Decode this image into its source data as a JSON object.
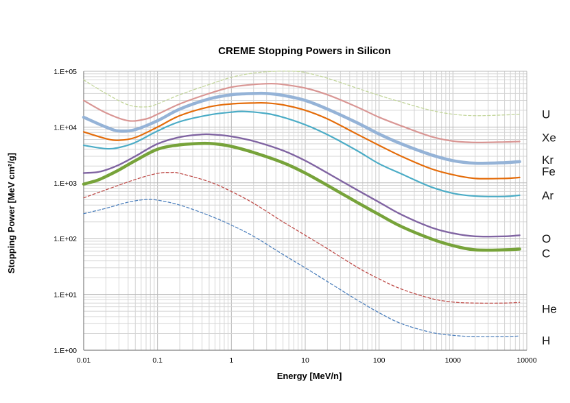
{
  "chart_data": {
    "type": "line",
    "title": "CREME Stopping Powers in Silicon",
    "xlabel": "Energy [MeV/n]",
    "ylabel": "Stopping Power [MeV cm²/g]",
    "x_scale": "log",
    "y_scale": "log",
    "xlim": [
      0.01,
      10000
    ],
    "ylim": [
      1,
      100000
    ],
    "grid": true,
    "legend": "labels at right end of each series",
    "x_ticks": [
      {
        "value": 0.01,
        "label": "0.01"
      },
      {
        "value": 0.1,
        "label": "0.1"
      },
      {
        "value": 1,
        "label": "1"
      },
      {
        "value": 10,
        "label": "10"
      },
      {
        "value": 100,
        "label": "100"
      },
      {
        "value": 1000,
        "label": "1000"
      },
      {
        "value": 10000,
        "label": "10000"
      }
    ],
    "y_ticks": [
      {
        "value": 1,
        "label": "1.E+00"
      },
      {
        "value": 10,
        "label": "1.E+01"
      },
      {
        "value": 100,
        "label": "1.E+02"
      },
      {
        "value": 1000,
        "label": "1.E+03"
      },
      {
        "value": 10000,
        "label": "1.E+04"
      },
      {
        "value": 100000,
        "label": "1.E+05"
      }
    ],
    "series": [
      {
        "name": "U",
        "color": "#c3d69b",
        "style": "dashed",
        "width": 1.3,
        "x": [
          0.01,
          0.02,
          0.04,
          0.07,
          0.1,
          0.2,
          0.5,
          1,
          2,
          4,
          7,
          10,
          20,
          50,
          100,
          200,
          500,
          1000,
          2000,
          5000,
          8000
        ],
        "y": [
          70000,
          40000,
          25000,
          23000,
          26000,
          38000,
          58000,
          78000,
          93000,
          100000,
          100000,
          95000,
          75000,
          50000,
          37000,
          28000,
          20000,
          17000,
          16000,
          16500,
          17000
        ]
      },
      {
        "name": "Xe",
        "color": "#d99694",
        "style": "solid",
        "width": 2.2,
        "x": [
          0.01,
          0.02,
          0.04,
          0.07,
          0.1,
          0.2,
          0.5,
          1,
          2,
          3.5,
          5,
          10,
          20,
          50,
          100,
          200,
          500,
          1000,
          2000,
          5000,
          8000
        ],
        "y": [
          30000,
          18000,
          13000,
          14000,
          17000,
          26000,
          40000,
          52000,
          58000,
          60000,
          58000,
          50000,
          38000,
          23000,
          15000,
          10500,
          6800,
          5600,
          5300,
          5400,
          5500
        ]
      },
      {
        "name": "Kr",
        "color": "#95b3d7",
        "style": "solid",
        "width": 4.5,
        "x": [
          0.01,
          0.02,
          0.03,
          0.05,
          0.1,
          0.2,
          0.5,
          1,
          2,
          3,
          5,
          10,
          20,
          50,
          100,
          200,
          500,
          1000,
          2000,
          5000,
          8000
        ],
        "y": [
          15000,
          10000,
          8500,
          9000,
          13000,
          21000,
          32000,
          38000,
          40000,
          40000,
          37000,
          30000,
          21000,
          12000,
          7500,
          5000,
          3200,
          2500,
          2250,
          2300,
          2400
        ]
      },
      {
        "name": "Fe",
        "color": "#e46c0a",
        "style": "solid",
        "width": 2.2,
        "x": [
          0.01,
          0.02,
          0.03,
          0.05,
          0.1,
          0.2,
          0.5,
          1,
          2,
          3,
          5,
          10,
          20,
          50,
          100,
          200,
          500,
          1000,
          2000,
          5000,
          8000
        ],
        "y": [
          8200,
          6200,
          5800,
          6500,
          10000,
          16000,
          23000,
          26000,
          27000,
          27000,
          25000,
          20000,
          14000,
          7500,
          4700,
          3000,
          1800,
          1400,
          1200,
          1200,
          1250
        ]
      },
      {
        "name": "Ar",
        "color": "#4bacc6",
        "style": "solid",
        "width": 2.2,
        "x": [
          0.01,
          0.02,
          0.03,
          0.05,
          0.1,
          0.2,
          0.5,
          1,
          1.5,
          3,
          5,
          10,
          20,
          50,
          100,
          200,
          500,
          1000,
          2000,
          5000,
          8000
        ],
        "y": [
          4700,
          4100,
          4300,
          5300,
          8500,
          12500,
          16500,
          18500,
          19000,
          17500,
          15000,
          11000,
          7300,
          3800,
          2200,
          1450,
          850,
          650,
          580,
          570,
          600
        ]
      },
      {
        "name": "O",
        "color": "#8064a2",
        "style": "solid",
        "width": 2.4,
        "x": [
          0.01,
          0.015,
          0.02,
          0.03,
          0.05,
          0.1,
          0.2,
          0.4,
          0.6,
          1,
          2,
          5,
          10,
          20,
          50,
          100,
          200,
          500,
          1000,
          2000,
          5000,
          8000
        ],
        "y": [
          1500,
          1550,
          1700,
          2100,
          3000,
          5000,
          6600,
          7400,
          7300,
          6800,
          5600,
          3800,
          2500,
          1500,
          750,
          450,
          270,
          160,
          125,
          110,
          110,
          115
        ]
      },
      {
        "name": "C",
        "color": "#77a33a",
        "style": "solid",
        "width": 4.5,
        "x": [
          0.01,
          0.015,
          0.02,
          0.03,
          0.05,
          0.1,
          0.2,
          0.4,
          0.6,
          1,
          2,
          5,
          10,
          20,
          50,
          100,
          200,
          500,
          1000,
          2000,
          5000,
          8000
        ],
        "y": [
          950,
          1100,
          1300,
          1700,
          2500,
          4000,
          4800,
          5100,
          5000,
          4500,
          3500,
          2300,
          1500,
          900,
          450,
          270,
          165,
          100,
          75,
          63,
          63,
          65
        ]
      },
      {
        "name": "He",
        "color": "#c0504d",
        "style": "dashed",
        "width": 1.3,
        "x": [
          0.01,
          0.02,
          0.05,
          0.1,
          0.15,
          0.2,
          0.5,
          1,
          2,
          5,
          10,
          20,
          50,
          100,
          200,
          500,
          1000,
          2000,
          5000,
          8000
        ],
        "y": [
          540,
          750,
          1150,
          1480,
          1530,
          1480,
          1050,
          700,
          430,
          200,
          115,
          66,
          31,
          19,
          12.5,
          8.5,
          7.3,
          7,
          7,
          7.2
        ]
      },
      {
        "name": "H",
        "color": "#4f81bd",
        "style": "dashed",
        "width": 1.3,
        "x": [
          0.01,
          0.02,
          0.04,
          0.07,
          0.1,
          0.2,
          0.5,
          1,
          2,
          5,
          10,
          20,
          50,
          100,
          200,
          500,
          1000,
          2000,
          5000,
          8000
        ],
        "y": [
          280,
          350,
          450,
          505,
          490,
          400,
          260,
          175,
          110,
          52,
          30,
          17,
          8,
          4.7,
          3,
          2.1,
          1.85,
          1.75,
          1.75,
          1.8
        ]
      }
    ],
    "end_labels": [
      {
        "text": "U",
        "y": 17000
      },
      {
        "text": "Xe",
        "y": 6500
      },
      {
        "text": "Kr",
        "y": 2600
      },
      {
        "text": "Fe",
        "y": 1600
      },
      {
        "text": "Ar",
        "y": 600
      },
      {
        "text": "O",
        "y": 100
      },
      {
        "text": "C",
        "y": 55
      },
      {
        "text": "He",
        "y": 5.5
      },
      {
        "text": "H",
        "y": 1.5
      }
    ]
  }
}
